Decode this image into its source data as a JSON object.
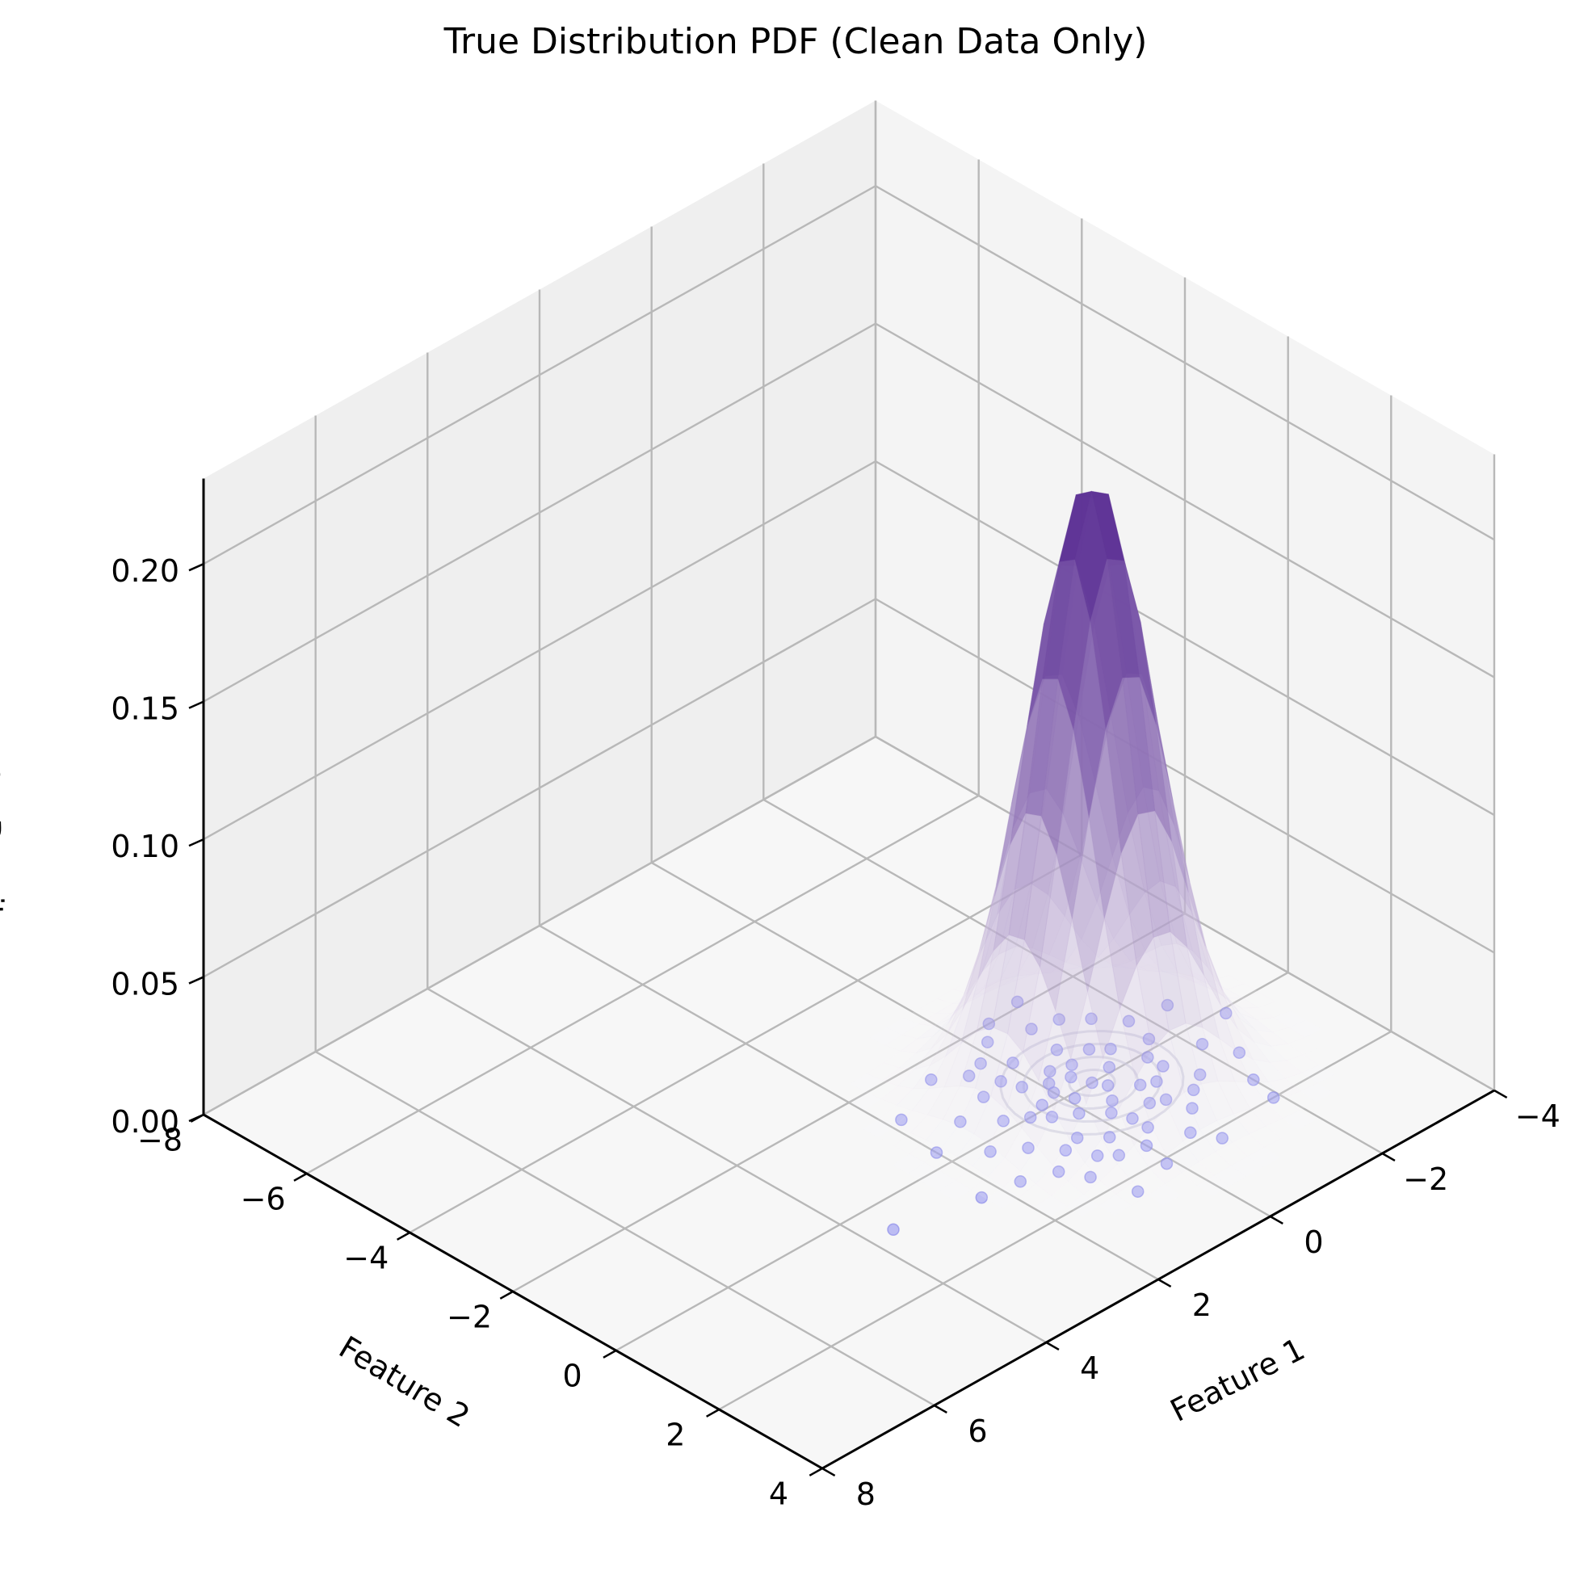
{
  "chart_data": {
    "type": "surface3d",
    "title": "True Distribution PDF (Clean Data Only)",
    "xlabel": "Feature 1",
    "ylabel": "Feature 2",
    "zlabel": "Probability Density",
    "xlim": [
      -4,
      8
    ],
    "ylim": [
      -8,
      4
    ],
    "zlim": [
      0,
      0.22
    ],
    "x_ticks": [
      -4,
      -2,
      0,
      2,
      4,
      6,
      8
    ],
    "y_ticks": [
      -8,
      -6,
      -4,
      -2,
      0,
      2,
      4
    ],
    "z_ticks": [
      0.0,
      0.05,
      0.1,
      0.15,
      0.2
    ],
    "x_tick_labels": [
      "−4",
      "−2",
      "0",
      "2",
      "4",
      "6",
      "8"
    ],
    "y_tick_labels": [
      "−8",
      "−6",
      "−4",
      "−2",
      "0",
      "2",
      "4"
    ],
    "z_tick_labels": [
      "0.00",
      "0.05",
      "0.10",
      "0.15",
      "0.20"
    ],
    "grid": true,
    "surface": {
      "mean": [
        -0.5,
        0.0
      ],
      "std": [
        0.85,
        0.85
      ],
      "peak": 0.22,
      "colormap": "Purples"
    },
    "points_color": "#8c8cf0",
    "scatter_points": [
      [
        -0.9,
        0.5
      ],
      [
        -0.3,
        1.0
      ],
      [
        0.2,
        -0.6
      ],
      [
        -1.2,
        -0.4
      ],
      [
        -0.6,
        0.2
      ],
      [
        0.5,
        0.8
      ],
      [
        -0.1,
        -1.1
      ],
      [
        -1.6,
        0.9
      ],
      [
        0.9,
        -0.2
      ],
      [
        -0.4,
        -0.3
      ],
      [
        -1.0,
        1.4
      ],
      [
        0.1,
        0.4
      ],
      [
        -0.7,
        -0.9
      ],
      [
        0.6,
        1.3
      ],
      [
        -1.4,
        0.1
      ],
      [
        0.3,
        -0.1
      ],
      [
        -0.2,
        0.7
      ],
      [
        -0.8,
        -1.5
      ],
      [
        1.1,
        0.5
      ],
      [
        -1.8,
        -0.7
      ],
      [
        0.0,
        1.6
      ],
      [
        -0.5,
        0.0
      ],
      [
        0.7,
        -0.8
      ],
      [
        -1.1,
        0.6
      ],
      [
        -0.3,
        -0.6
      ],
      [
        0.4,
        0.2
      ],
      [
        -1.3,
        1.1
      ],
      [
        0.2,
        1.1
      ],
      [
        -0.9,
        -0.1
      ],
      [
        1.3,
        -0.6
      ],
      [
        -0.6,
        1.8
      ],
      [
        -0.1,
        -0.4
      ],
      [
        -1.5,
        -1.1
      ],
      [
        0.8,
        0.9
      ],
      [
        -0.4,
        0.5
      ],
      [
        0.5,
        -1.3
      ],
      [
        -2.1,
        0.4
      ],
      [
        -0.2,
        -1.7
      ],
      [
        1.0,
        1.6
      ],
      [
        -0.7,
        0.9
      ],
      [
        0.3,
        -0.9
      ],
      [
        -1.2,
        -1.4
      ],
      [
        -2.0,
        1.5
      ],
      [
        1.5,
        0.2
      ],
      [
        -0.8,
        2.2
      ],
      [
        0.9,
        -1.6
      ],
      [
        -1.7,
        -0.2
      ],
      [
        0.1,
        2.1
      ],
      [
        -0.5,
        -2.0
      ],
      [
        1.7,
        1.0
      ],
      [
        -2.4,
        -0.6
      ],
      [
        -0.3,
        1.3
      ],
      [
        0.6,
        0.0
      ],
      [
        -1.0,
        -0.6
      ],
      [
        -1.9,
        2.0
      ],
      [
        2.0,
        -0.3
      ],
      [
        0.0,
        -0.2
      ],
      [
        -0.6,
        -0.5
      ],
      [
        0.4,
        1.5
      ],
      [
        -1.4,
        0.4
      ],
      [
        -0.9,
        1.0
      ],
      [
        0.2,
        -1.4
      ],
      [
        1.2,
        1.2
      ],
      [
        -2.3,
        0.9
      ],
      [
        -0.1,
        0.1
      ],
      [
        2.3,
        0.9
      ],
      [
        0.8,
        2.3
      ],
      [
        -1.1,
        -2.1
      ],
      [
        1.8,
        -1.2
      ],
      [
        -2.8,
        0.1
      ],
      [
        3.6,
        0.6
      ]
    ]
  }
}
